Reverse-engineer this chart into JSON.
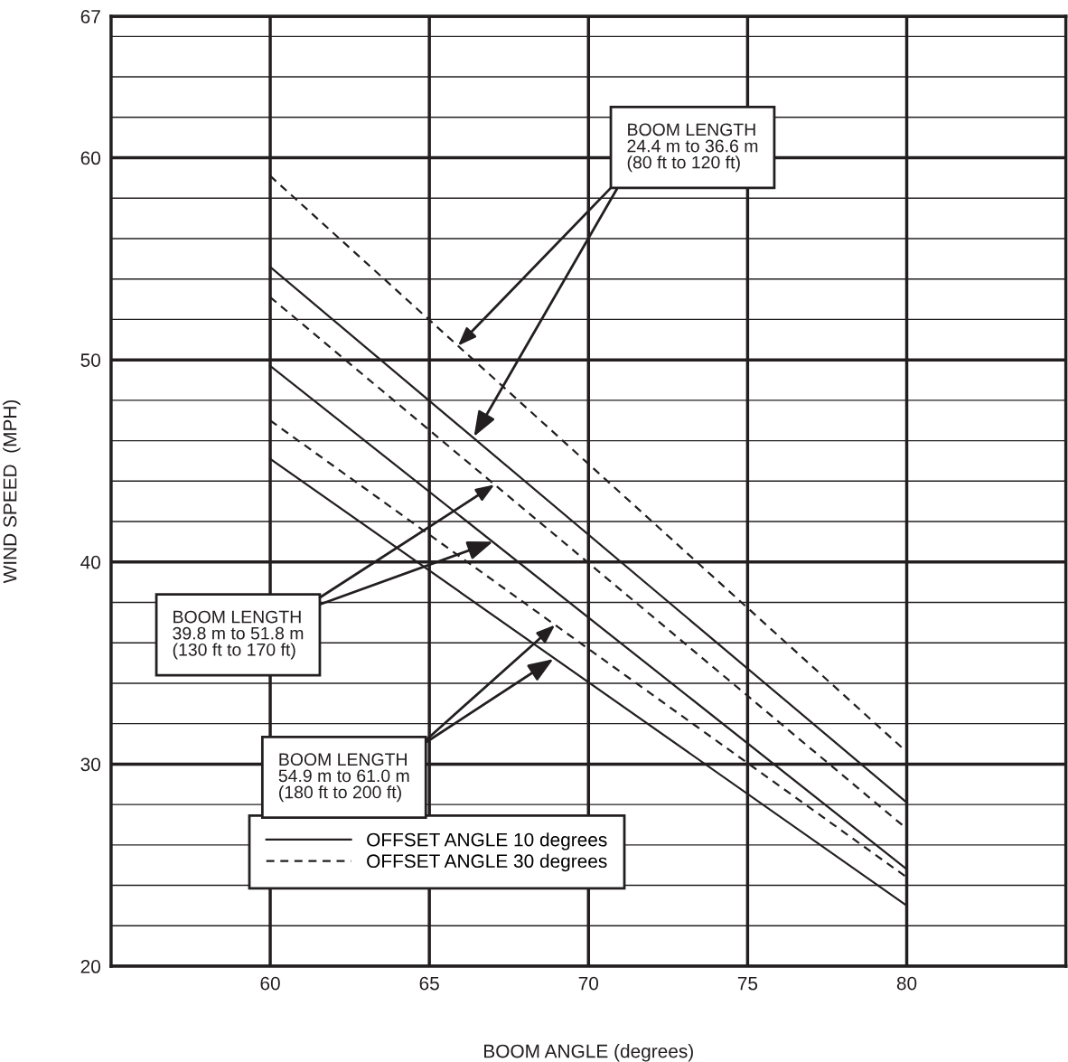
{
  "chart_data": {
    "type": "line",
    "xlabel": "BOOM ANGLE (degrees)",
    "ylabel": "WIND SPEED  (MPH)",
    "x": [
      60,
      80
    ],
    "xlim": [
      55,
      85
    ],
    "xticks": [
      60,
      65,
      70,
      75,
      80
    ],
    "ylim": [
      20,
      67
    ],
    "yticks": [
      20,
      {
        "value": 22,
        "label": null
      },
      {
        "value": 24,
        "label": null
      },
      {
        "value": 26,
        "label": null
      },
      {
        "value": 28,
        "label": null
      },
      30,
      {
        "value": 32,
        "label": null
      },
      {
        "value": 34,
        "label": null
      },
      {
        "value": 36,
        "label": null
      },
      {
        "value": 38,
        "label": null
      },
      40,
      {
        "value": 42,
        "label": null
      },
      {
        "value": 44,
        "label": null
      },
      {
        "value": 46,
        "label": null
      },
      {
        "value": 48,
        "label": null
      },
      50,
      {
        "value": 52,
        "label": null
      },
      {
        "value": 54,
        "label": null
      },
      {
        "value": 56,
        "label": null
      },
      {
        "value": 58,
        "label": null
      },
      60,
      {
        "value": 62,
        "label": null
      },
      {
        "value": 64,
        "label": null
      },
      {
        "value": 66,
        "label": null
      },
      67
    ],
    "grid": true,
    "legend": "bottom",
    "marker": "none",
    "series": [
      {
        "name": "OFFSET ANGLE 10 degrees",
        "color": "#231f20",
        "line_style": "solid",
        "values": [
          54.6,
          28.1
        ]
      },
      {
        "name": "OFFSET ANGLE 30 degrees",
        "color": "#231f20",
        "line_style": "dashed",
        "values": [
          59.1,
          30.6
        ]
      },
      {
        "color": "#231f20",
        "line_style": "solid",
        "values": [
          49.7,
          24.8
        ]
      },
      {
        "color": "#231f20",
        "line_style": "dashed",
        "values": [
          53.1,
          26.8
        ]
      },
      {
        "color": "#231f20",
        "line_style": "solid",
        "values": [
          45.1,
          23.0
        ]
      },
      {
        "color": "#231f20",
        "line_style": "dashed",
        "values": [
          47.0,
          24.4
        ]
      }
    ],
    "annotations": [
      {
        "text": "BOOM LENGTH\n24.4 m to 36.6 m\n(80 ft to 120 ft)",
        "x": 66.4,
        "y": 46.2
      },
      {
        "text": "BOOM LENGTH\n39.8 m to 51.8 m\n(130 ft to 170 ft)",
        "x": 67.0,
        "y": 41.0
      },
      {
        "text": "BOOM LENGTH\n54.9 m to 61.0 m\n(180 ft to 200 ft)",
        "x": 68.9,
        "y": 35.2
      }
    ]
  }
}
